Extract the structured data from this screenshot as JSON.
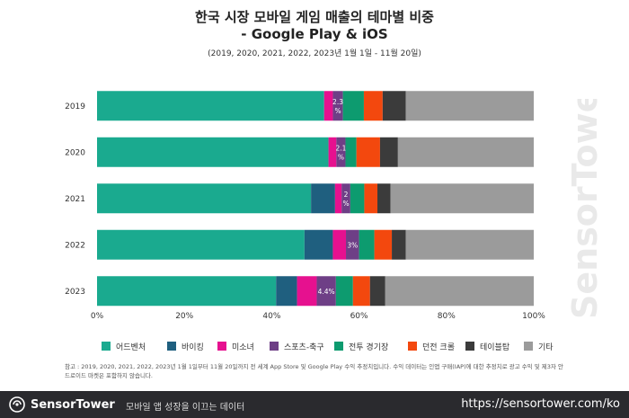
{
  "chart_data": {
    "type": "bar",
    "orientation": "horizontal",
    "stacked": true,
    "title": "한국 시장 모바일 게임 매출의 테마별 비중",
    "title_line2": "- Google Play & iOS",
    "subtitle": "(2019, 2020, 2021, 2022, 2023년 1월 1일 - 11월 20일)",
    "categories": [
      "2019",
      "2020",
      "2021",
      "2022",
      "2023"
    ],
    "xlim": [
      0,
      100
    ],
    "x_ticks": [
      "0%",
      "20%",
      "40%",
      "60%",
      "80%",
      "100%"
    ],
    "grid": false,
    "legend_position": "bottom",
    "series": [
      {
        "name": "어드벤처",
        "color": "#1aaa8f",
        "values": [
          52,
          53,
          49,
          47.5,
          41
        ]
      },
      {
        "name": "바이킹",
        "color": "#1f5f7f",
        "values": [
          0,
          0,
          5.5,
          6.5,
          4.8
        ]
      },
      {
        "name": "미소녀",
        "color": "#e6118f",
        "values": [
          2,
          1.8,
          1.5,
          3,
          4.5
        ]
      },
      {
        "name": "스포츠-축구",
        "color": "#6e3f86",
        "values": [
          2.3,
          2.1,
          2,
          3,
          4.4
        ]
      },
      {
        "name": "전투 경기장",
        "color": "#0d9b6f",
        "values": [
          4.8,
          2.5,
          3.2,
          3.5,
          3.9
        ]
      },
      {
        "name": "던전 크롤",
        "color": "#f3480e",
        "values": [
          4.3,
          5.4,
          3,
          4,
          3.9
        ]
      },
      {
        "name": "테이블탑",
        "color": "#3b3b3b",
        "values": [
          5.3,
          4.1,
          3,
          3.2,
          3.5
        ]
      },
      {
        "name": "기타",
        "color": "#9b9b9b",
        "values": [
          29.3,
          31.1,
          32.8,
          29.3,
          34
        ]
      }
    ],
    "data_labels": [
      {
        "category": "2019",
        "series": "스포츠-축구",
        "text": "2.3\n%"
      },
      {
        "category": "2020",
        "series": "스포츠-축구",
        "text": "2.1\n%"
      },
      {
        "category": "2021",
        "series": "스포츠-축구",
        "text": "2\n%"
      },
      {
        "category": "2022",
        "series": "스포츠-축구",
        "text": "3%"
      },
      {
        "category": "2023",
        "series": "스포츠-축구",
        "text": "4.4%"
      }
    ]
  },
  "note": "참고 : 2019, 2020, 2021, 2022, 2023년 1월 1일부터 11월 20일까지 전 세계 App Store 및 Google Play 수익 추정치입니다. 수익 데이터는 인앱 구매(IAP)에 대한 추정치로 광고 수익 및 제3자 안드로이드 마켓은 포함하지 않습니다.",
  "watermark": "SensorTower",
  "footer": {
    "brand": "SensorTower",
    "tagline": "모바일 앱 성장을 이끄는 데이터",
    "url": "https://sensortower.com/ko"
  },
  "colors": {
    "footer_bg": "#2a2a2e",
    "watermark": "#e9e9e9"
  }
}
